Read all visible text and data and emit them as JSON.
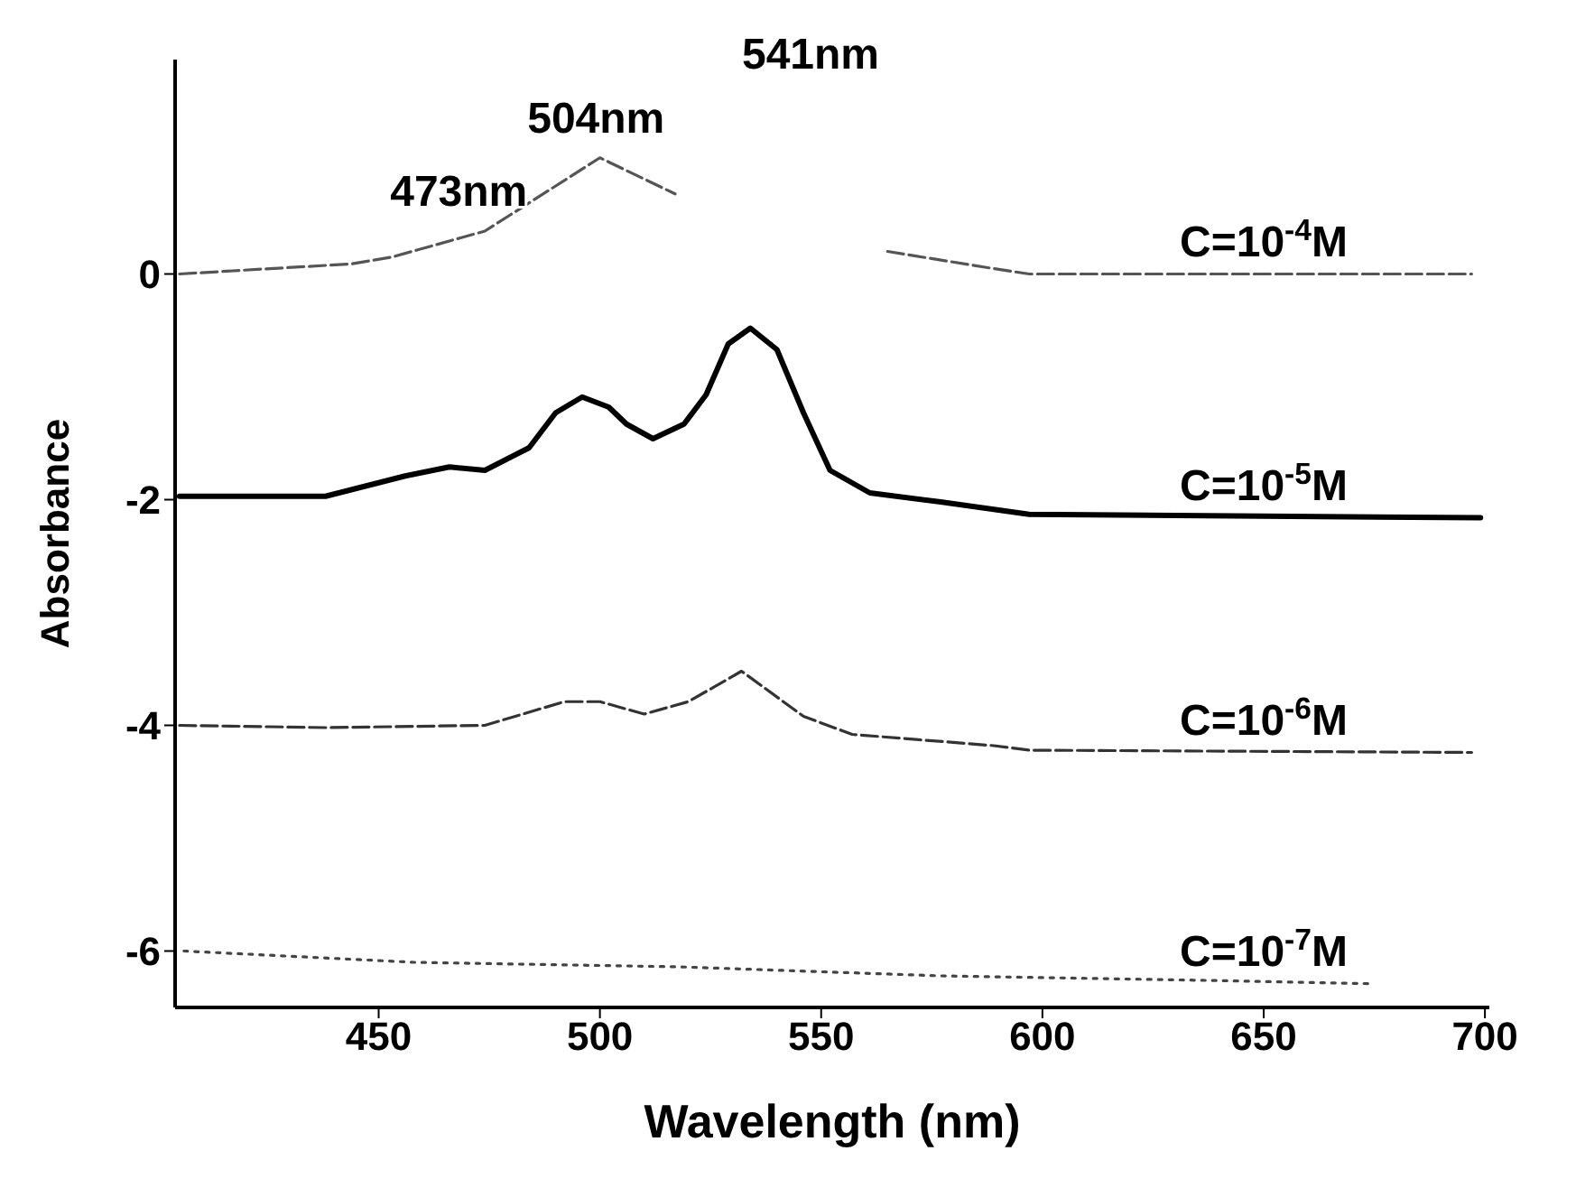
{
  "chart_data": {
    "type": "line",
    "xlabel": "Wavelength (nm)",
    "ylabel": "Absorbance",
    "xlim": [
      404,
      701
    ],
    "xticks": [
      450,
      500,
      550,
      600,
      650,
      700
    ],
    "ylim": [
      -6.5,
      1.9
    ],
    "yticks": [
      0,
      -2,
      -4,
      -6
    ],
    "grid": false,
    "legend": false,
    "marker": "none",
    "annotations": [
      {
        "text": "473nm",
        "x": 473,
        "y": 0.38
      },
      {
        "text": "504nm",
        "x": 504,
        "y": 1.03
      },
      "541nm"
    ],
    "series": [
      {
        "name": "C=10$^{-4}$M",
        "color": "#555555",
        "line_style": "dashed",
        "x": [
          405,
          444,
          453,
          474,
          500,
          517,
          540,
          565,
          587,
          597,
          697
        ],
        "values": [
          0,
          0.09,
          0.15,
          0.38,
          1.03,
          0.71,
          null,
          0.2,
          0.06,
          0,
          0
        ]
      },
      {
        "name": "C=10$^{-5}$M",
        "color": "#000000",
        "line_style": "solid",
        "x": [
          405,
          438,
          456,
          466,
          474,
          484,
          490,
          496,
          502,
          506,
          512,
          519,
          524,
          529,
          534,
          540,
          546,
          552,
          561,
          577,
          597,
          699
        ],
        "values": [
          -1.97,
          -1.97,
          -1.79,
          -1.71,
          -1.74,
          -1.54,
          -1.23,
          -1.09,
          -1.18,
          -1.33,
          -1.46,
          -1.33,
          -1.07,
          -0.62,
          -0.48,
          -0.67,
          -1.23,
          -1.74,
          -1.94,
          -2.02,
          -2.13,
          -2.16
        ]
      },
      {
        "name": "C=10$^{-6}$M",
        "color": "#333333",
        "line_style": "dashed",
        "x": [
          405,
          438,
          474,
          492,
          500,
          510,
          520,
          532,
          546,
          557,
          589,
          597,
          697
        ],
        "values": [
          -4,
          -4.02,
          -4,
          -3.79,
          -3.79,
          -3.9,
          -3.79,
          -3.52,
          -3.92,
          -4.08,
          -4.18,
          -4.22,
          -4.24
        ]
      },
      {
        "name": "C=10$^{-7}$M",
        "color": "#444444",
        "line_style": "dotted",
        "x": [
          406,
          458,
          518,
          577,
          637,
          675
        ],
        "values": [
          -6,
          -6.1,
          -6.14,
          -6.22,
          -6.26,
          -6.29
        ]
      }
    ]
  }
}
